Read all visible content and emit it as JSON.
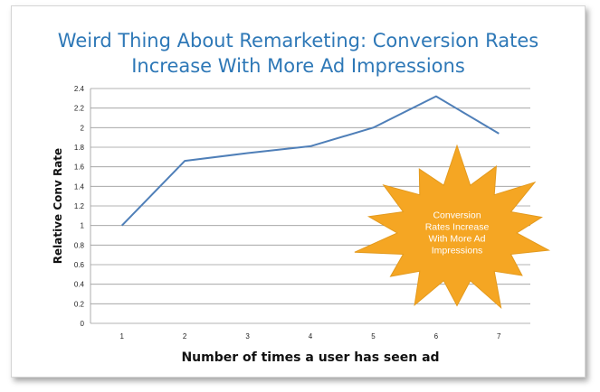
{
  "title_line1": "Weird Thing About Remarketing: Conversion Rates",
  "title_line2": "Increase With More Ad Impressions",
  "callout": {
    "lines": [
      "Conversion",
      "Rates Increase",
      "With More Ad",
      "Impressions"
    ],
    "fill": "#f5a623"
  },
  "chart_data": {
    "type": "line",
    "x": [
      1,
      2,
      3,
      4,
      5,
      6,
      7
    ],
    "y": [
      1.0,
      1.66,
      1.74,
      1.81,
      2.0,
      2.32,
      1.94
    ],
    "xlabel": "Number of times a user has seen ad",
    "ylabel": "Relative Conv Rate",
    "ylim": [
      0,
      2.4
    ],
    "yticks": [
      "0",
      "0.2",
      "0.4",
      "0.6",
      "0.8",
      "1",
      "1.2",
      "1.4",
      "1.6",
      "1.8",
      "2",
      "2.2",
      "2.4"
    ],
    "xticks": [
      "1",
      "2",
      "3",
      "4",
      "5",
      "6",
      "7"
    ],
    "grid": true,
    "line_color": "#4f7fb8",
    "grid_color": "#9a9a9a"
  }
}
